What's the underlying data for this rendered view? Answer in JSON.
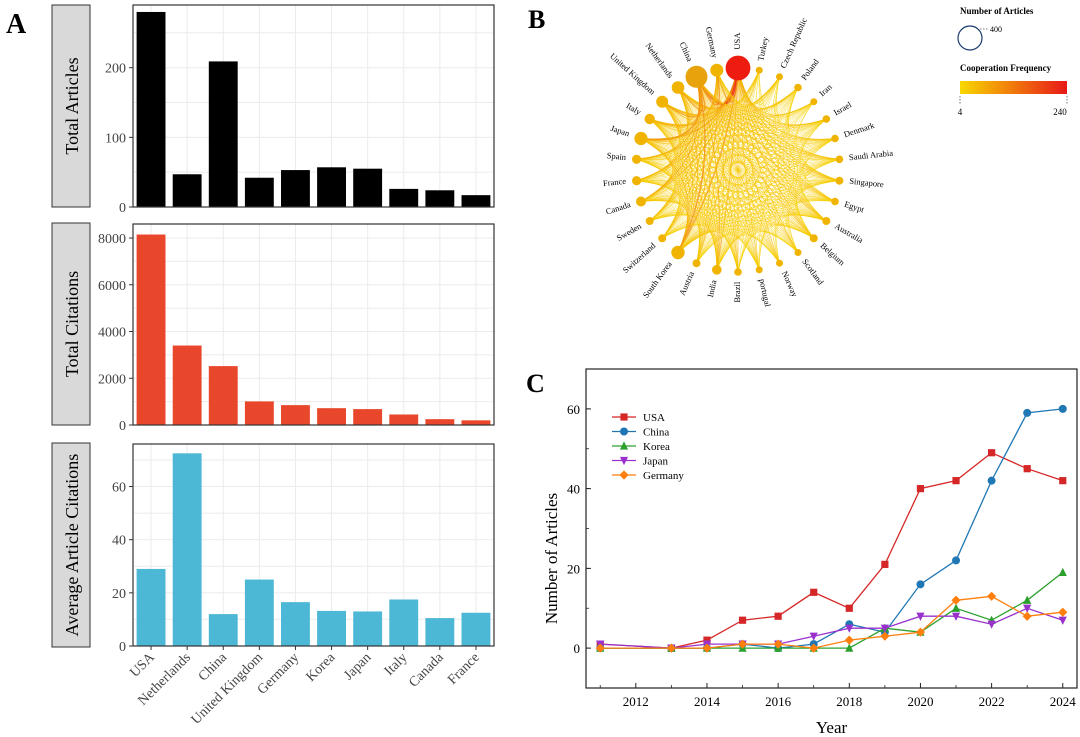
{
  "panel_letters": {
    "a": "A",
    "b": "B",
    "c": "C"
  },
  "colors": {
    "articles_bar": "#000000",
    "citations_bar": "#e8472b",
    "avg_bar": "#4cb8d6",
    "usa": "#d62728",
    "china": "#1f77b4",
    "korea": "#2ca02c",
    "japan": "#9932cc",
    "germany": "#ff7f0e",
    "edge": "#f0b400",
    "grad_start": "#f8d800",
    "grad_end": "#e81818"
  },
  "chart_data": [
    {
      "type": "bar",
      "panel": "A",
      "strip_label": "Total Articles",
      "categories": [
        "USA",
        "Netherlands",
        "China",
        "United Kingdom",
        "Germany",
        "Korea",
        "Japan",
        "Italy",
        "Canada",
        "France"
      ],
      "values": [
        280,
        47,
        209,
        42,
        53,
        57,
        55,
        26,
        24,
        17
      ],
      "ylim": [
        0,
        290
      ],
      "yticks": [
        0,
        100,
        200
      ]
    },
    {
      "type": "bar",
      "panel": "A",
      "strip_label": "Total Citations",
      "categories": [
        "USA",
        "Netherlands",
        "China",
        "United Kingdom",
        "Germany",
        "Korea",
        "Japan",
        "Italy",
        "Canada",
        "France"
      ],
      "values": [
        8150,
        3400,
        2520,
        1010,
        850,
        720,
        680,
        450,
        250,
        200
      ],
      "ylim": [
        0,
        8600
      ],
      "yticks": [
        0,
        2000,
        4000,
        6000,
        8000
      ]
    },
    {
      "type": "bar",
      "panel": "A",
      "strip_label": "Average Article Citations",
      "categories": [
        "USA",
        "Netherlands",
        "China",
        "United Kingdom",
        "Germany",
        "Korea",
        "Japan",
        "Italy",
        "Canada",
        "France"
      ],
      "values": [
        29,
        72.5,
        12,
        25,
        16.5,
        13.2,
        13,
        17.5,
        10.5,
        12.5
      ],
      "ylim": [
        0,
        76
      ],
      "yticks": [
        0,
        20,
        40,
        60
      ]
    },
    {
      "type": "network",
      "panel": "B",
      "nodes": [
        {
          "label": "USA",
          "size": 280
        },
        {
          "label": "Turkey",
          "size": 6
        },
        {
          "label": "Czech Republic",
          "size": 6
        },
        {
          "label": "Poland",
          "size": 8
        },
        {
          "label": "Iran",
          "size": 6
        },
        {
          "label": "Israel",
          "size": 8
        },
        {
          "label": "Denmark",
          "size": 8
        },
        {
          "label": "Saudi Arabia",
          "size": 8
        },
        {
          "label": "Singapore",
          "size": 10
        },
        {
          "label": "Egypt",
          "size": 8
        },
        {
          "label": "Australia",
          "size": 10
        },
        {
          "label": "Belgium",
          "size": 10
        },
        {
          "label": "Scotland",
          "size": 6
        },
        {
          "label": "Norway",
          "size": 6
        },
        {
          "label": "portugal",
          "size": 6
        },
        {
          "label": "Brazil",
          "size": 8
        },
        {
          "label": "India",
          "size": 20
        },
        {
          "label": "Austria",
          "size": 10
        },
        {
          "label": "South Korea",
          "size": 57
        },
        {
          "label": "Switzerland",
          "size": 10
        },
        {
          "label": "Sweden",
          "size": 10
        },
        {
          "label": "Canada",
          "size": 24
        },
        {
          "label": "France",
          "size": 17
        },
        {
          "label": "Spain",
          "size": 18
        },
        {
          "label": "Japan",
          "size": 55
        },
        {
          "label": "Italy",
          "size": 26
        },
        {
          "label": "United Kingdom",
          "size": 42
        },
        {
          "label": "Netherlands",
          "size": 47
        },
        {
          "label": "China",
          "size": 209
        },
        {
          "label": "Germany",
          "size": 53
        }
      ],
      "legend": {
        "size_title": "Number of Articles",
        "size_value": "400",
        "color_title": "Cooperation Frequency",
        "color_min": "4",
        "color_max": "240"
      }
    },
    {
      "type": "line",
      "panel": "C",
      "xlabel": "Year",
      "ylabel": "Number of Articles",
      "xlim": [
        2010.6,
        2024.4
      ],
      "ylim": [
        -10,
        70
      ],
      "xticks": [
        2012,
        2014,
        2016,
        2018,
        2020,
        2022,
        2024
      ],
      "yticks": [
        0,
        20,
        40,
        60
      ],
      "x": [
        2011,
        2013,
        2014,
        2015,
        2016,
        2017,
        2018,
        2019,
        2020,
        2021,
        2022,
        2023,
        2024
      ],
      "series": [
        {
          "name": "USA",
          "marker": "square",
          "values": [
            1,
            0,
            2,
            7,
            8,
            14,
            10,
            21,
            40,
            42,
            49,
            45,
            42
          ]
        },
        {
          "name": "China",
          "marker": "circle",
          "values": [
            0,
            0,
            0,
            1,
            0,
            1,
            6,
            4,
            16,
            22,
            42,
            59,
            60
          ]
        },
        {
          "name": "Korea",
          "marker": "triangle-up",
          "values": [
            0,
            0,
            0,
            0,
            0,
            0,
            0,
            5,
            4,
            10,
            7,
            12,
            19
          ]
        },
        {
          "name": "Japan",
          "marker": "triangle-down",
          "values": [
            1,
            0,
            1,
            1,
            1,
            3,
            5,
            5,
            8,
            8,
            6,
            10,
            7
          ]
        },
        {
          "name": "Germany",
          "marker": "diamond",
          "values": [
            0,
            0,
            0,
            1,
            1,
            0,
            2,
            3,
            4,
            12,
            13,
            8,
            9
          ]
        }
      ]
    }
  ]
}
